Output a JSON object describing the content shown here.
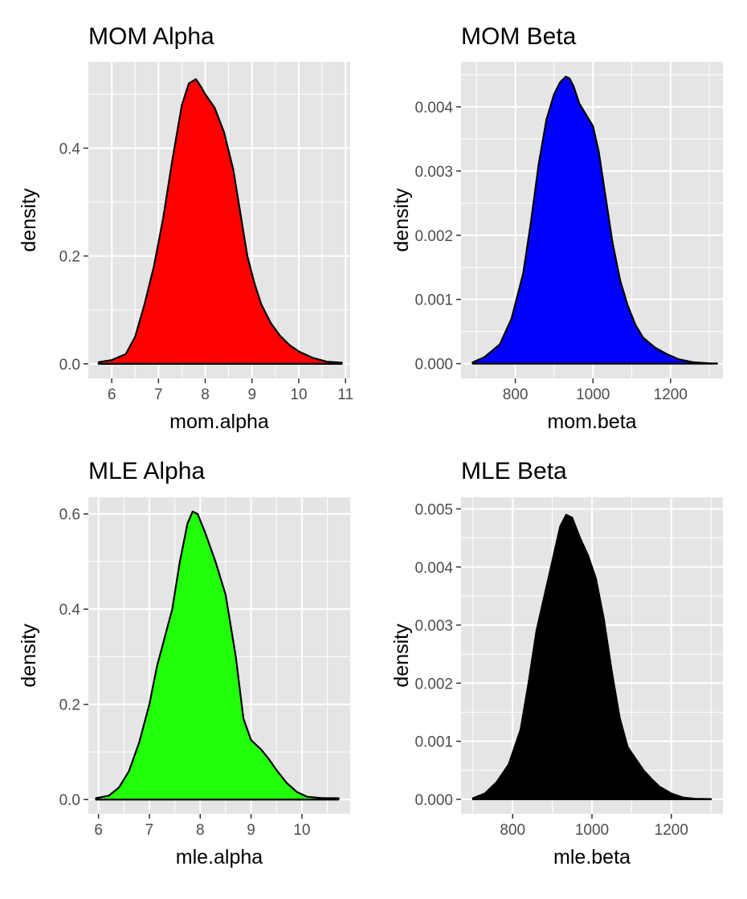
{
  "chart_data": [
    {
      "type": "area",
      "title": "MOM Alpha",
      "xlabel": "mom.alpha",
      "ylabel": "density",
      "fill": "#ff0000",
      "xlim": [
        5.5,
        11.1
      ],
      "ylim": [
        -0.027,
        0.56
      ],
      "xticks": [
        6,
        7,
        8,
        9,
        10,
        11
      ],
      "xtick_labels": [
        "6",
        "7",
        "8",
        "9",
        "10",
        "11"
      ],
      "yticks": [
        0,
        0.2,
        0.4
      ],
      "ytick_labels": [
        "0.0",
        "0.2",
        "0.4"
      ],
      "x": [
        5.72,
        6.0,
        6.3,
        6.5,
        6.7,
        6.9,
        7.1,
        7.3,
        7.5,
        7.65,
        7.8,
        7.9,
        8.0,
        8.2,
        8.4,
        8.6,
        8.75,
        8.9,
        9.05,
        9.2,
        9.4,
        9.6,
        9.8,
        10.0,
        10.3,
        10.6,
        10.92
      ],
      "y": [
        0.003,
        0.007,
        0.018,
        0.05,
        0.11,
        0.18,
        0.27,
        0.38,
        0.48,
        0.52,
        0.528,
        0.515,
        0.5,
        0.475,
        0.43,
        0.36,
        0.28,
        0.2,
        0.15,
        0.11,
        0.076,
        0.052,
        0.035,
        0.023,
        0.011,
        0.004,
        0.002
      ]
    },
    {
      "type": "area",
      "title": "MOM Beta",
      "xlabel": "mom.beta",
      "ylabel": "density",
      "fill": "#0000ff",
      "xlim": [
        660,
        1335
      ],
      "ylim": [
        -0.00023,
        0.0047
      ],
      "xticks": [
        800,
        1000,
        1200
      ],
      "xtick_labels": [
        "800",
        "1000",
        "1200"
      ],
      "yticks": [
        0,
        0.001,
        0.002,
        0.003,
        0.004
      ],
      "ytick_labels": [
        "0.000",
        "0.001",
        "0.002",
        "0.003",
        "0.004"
      ],
      "x": [
        690,
        720,
        760,
        790,
        820,
        840,
        860,
        880,
        900,
        915,
        930,
        940,
        950,
        965,
        980,
        1000,
        1015,
        1030,
        1050,
        1070,
        1090,
        1110,
        1130,
        1160,
        1190,
        1220,
        1260,
        1300,
        1320
      ],
      "y": [
        2e-05,
        0.0001,
        0.0003,
        0.0007,
        0.0014,
        0.0022,
        0.0031,
        0.0038,
        0.0042,
        0.00438,
        0.00447,
        0.00444,
        0.00432,
        0.00405,
        0.0039,
        0.0037,
        0.0033,
        0.0027,
        0.0019,
        0.0013,
        0.0009,
        0.0006,
        0.0004,
        0.00025,
        0.00015,
        7e-05,
        2e-05,
        5e-06,
        3e-06
      ]
    },
    {
      "type": "area",
      "title": "MLE Alpha",
      "xlabel": "mle.alpha",
      "ylabel": "density",
      "fill": "#22ff0a",
      "xlim": [
        5.8,
        10.95
      ],
      "ylim": [
        -0.03,
        0.635
      ],
      "xticks": [
        6,
        7,
        8,
        9,
        10
      ],
      "xtick_labels": [
        "6",
        "7",
        "8",
        "9",
        "10"
      ],
      "yticks": [
        0,
        0.2,
        0.4,
        0.6
      ],
      "ytick_labels": [
        "0.0",
        "0.2",
        "0.4",
        "0.6"
      ],
      "x": [
        5.95,
        6.2,
        6.4,
        6.6,
        6.8,
        7.0,
        7.15,
        7.3,
        7.45,
        7.6,
        7.75,
        7.85,
        7.95,
        8.1,
        8.3,
        8.5,
        8.7,
        8.85,
        9.0,
        9.2,
        9.35,
        9.5,
        9.7,
        9.9,
        10.1,
        10.4,
        10.72
      ],
      "y": [
        0.003,
        0.008,
        0.025,
        0.06,
        0.12,
        0.2,
        0.28,
        0.34,
        0.4,
        0.5,
        0.58,
        0.605,
        0.6,
        0.56,
        0.5,
        0.43,
        0.3,
        0.17,
        0.125,
        0.105,
        0.085,
        0.062,
        0.035,
        0.016,
        0.006,
        0.003,
        0.003
      ]
    },
    {
      "type": "area",
      "title": "MLE Beta",
      "xlabel": "mle.beta",
      "ylabel": "density",
      "fill": "#000000",
      "xlim": [
        670,
        1330
      ],
      "ylim": [
        -0.00025,
        0.0052
      ],
      "xticks": [
        800,
        1000,
        1200
      ],
      "xtick_labels": [
        "800",
        "1000",
        "1200"
      ],
      "yticks": [
        0,
        0.001,
        0.002,
        0.003,
        0.004,
        0.005
      ],
      "ytick_labels": [
        "0.000",
        "0.001",
        "0.002",
        "0.003",
        "0.004",
        "0.005"
      ],
      "x": [
        700,
        730,
        760,
        790,
        820,
        840,
        860,
        880,
        900,
        920,
        935,
        950,
        970,
        990,
        1010,
        1030,
        1050,
        1070,
        1090,
        1110,
        1130,
        1150,
        1170,
        1200,
        1230,
        1260,
        1300
      ],
      "y": [
        2e-05,
        0.0001,
        0.0003,
        0.0006,
        0.0012,
        0.002,
        0.0029,
        0.0035,
        0.0041,
        0.0047,
        0.0049,
        0.00485,
        0.0045,
        0.0042,
        0.0038,
        0.0031,
        0.0022,
        0.0014,
        0.0009,
        0.0007,
        0.0005,
        0.00035,
        0.00022,
        0.0001,
        3e-05,
        1e-05,
        5e-06
      ]
    }
  ]
}
